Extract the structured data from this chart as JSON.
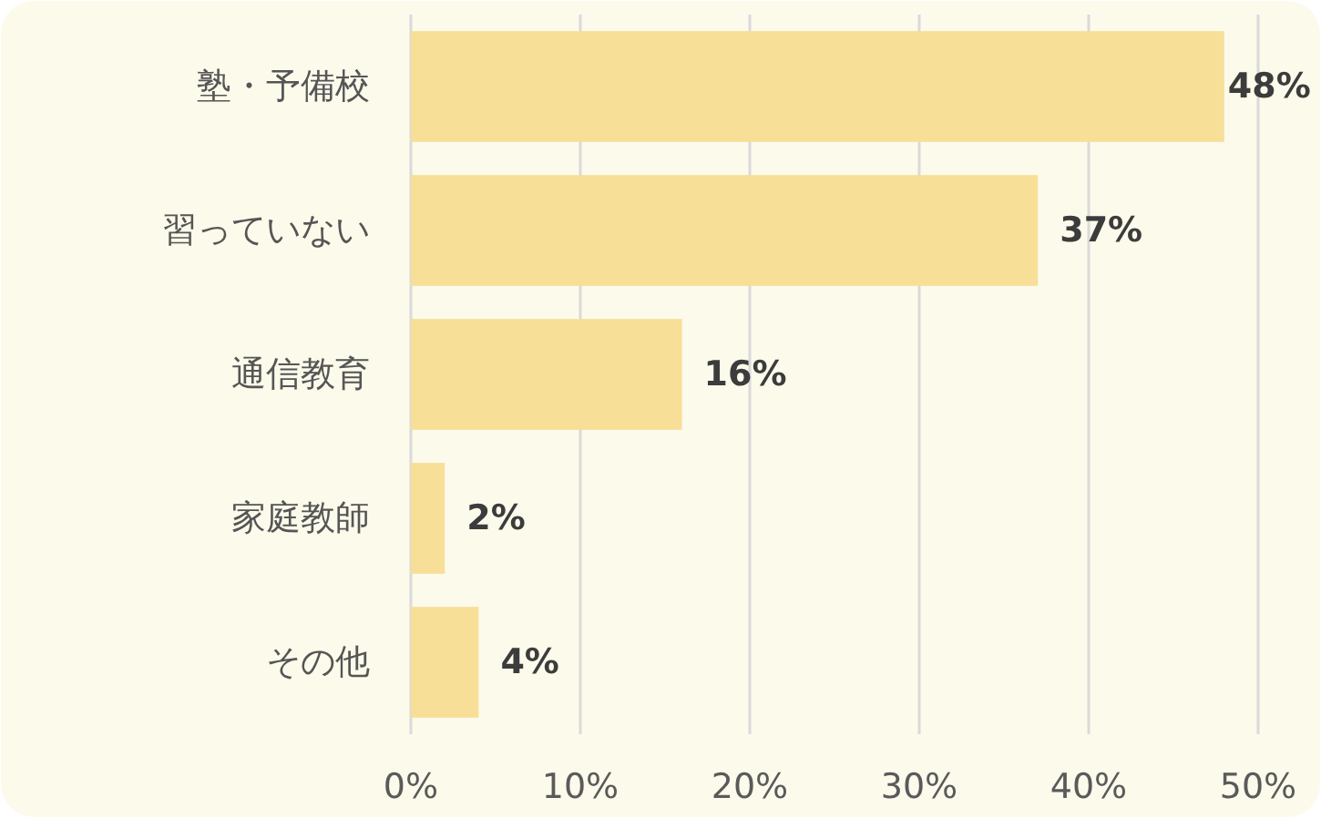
{
  "chart_data": {
    "type": "bar",
    "orientation": "horizontal",
    "categories": [
      "塾・予備校",
      "習っていない",
      "通信教育",
      "家庭教師",
      "その他"
    ],
    "values": [
      48,
      37,
      16,
      2,
      4
    ],
    "value_labels": [
      "48%",
      "37%",
      "16%",
      "2%",
      "4%"
    ],
    "color": "#f7df98",
    "xlim": [
      0,
      50
    ],
    "xticks": [
      {
        "value": 0,
        "label": "0%"
      },
      {
        "value": 10,
        "label": "10%"
      },
      {
        "value": 20,
        "label": "20%"
      },
      {
        "value": 30,
        "label": "30%"
      },
      {
        "value": 40,
        "label": "40%"
      },
      {
        "value": 50,
        "label": "50%"
      }
    ],
    "grid": "x"
  }
}
